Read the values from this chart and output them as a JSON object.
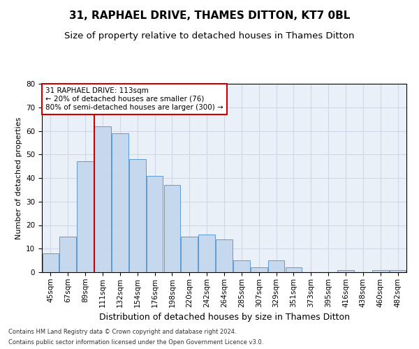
{
  "title": "31, RAPHAEL DRIVE, THAMES DITTON, KT7 0BL",
  "subtitle": "Size of property relative to detached houses in Thames Ditton",
  "xlabel": "Distribution of detached houses by size in Thames Ditton",
  "ylabel": "Number of detached properties",
  "footnote1": "Contains HM Land Registry data © Crown copyright and database right 2024.",
  "footnote2": "Contains public sector information licensed under the Open Government Licence v3.0.",
  "categories": [
    "45sqm",
    "67sqm",
    "89sqm",
    "111sqm",
    "132sqm",
    "154sqm",
    "176sqm",
    "198sqm",
    "220sqm",
    "242sqm",
    "264sqm",
    "285sqm",
    "307sqm",
    "329sqm",
    "351sqm",
    "373sqm",
    "395sqm",
    "416sqm",
    "438sqm",
    "460sqm",
    "482sqm"
  ],
  "values": [
    8,
    15,
    47,
    62,
    59,
    48,
    41,
    37,
    15,
    16,
    14,
    5,
    2,
    5,
    2,
    0,
    0,
    1,
    0,
    1,
    1
  ],
  "bar_color": "#c5d8ed",
  "bar_edge_color": "#5b9bd5",
  "grid_color": "#d0d8e8",
  "background_color": "#eaf0f8",
  "vline_index": 3,
  "vline_color": "#cc0000",
  "annotation_text": "31 RAPHAEL DRIVE: 113sqm\n← 20% of detached houses are smaller (76)\n80% of semi-detached houses are larger (300) →",
  "annotation_box_color": "#ffffff",
  "annotation_box_edge": "#cc0000",
  "ylim": [
    0,
    80
  ],
  "yticks": [
    0,
    10,
    20,
    30,
    40,
    50,
    60,
    70,
    80
  ],
  "title_fontsize": 11,
  "subtitle_fontsize": 9.5,
  "xlabel_fontsize": 9,
  "ylabel_fontsize": 8,
  "tick_fontsize": 7.5,
  "annot_fontsize": 7.5,
  "footnote_fontsize": 6
}
